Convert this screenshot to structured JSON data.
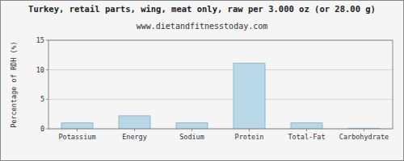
{
  "chart_data": {
    "type": "bar",
    "title": "Turkey, retail parts, wing, meat only, raw per 3.000 oz (or 28.00 g)",
    "subtitle": "www.dietandfitnesstoday.com",
    "ylabel": "Percentage of RDH (%)",
    "categories": [
      "Potassium",
      "Energy",
      "Sodium",
      "Protein",
      "Total-Fat",
      "Carbohydrate"
    ],
    "values": [
      1.0,
      2.2,
      1.0,
      11.1,
      1.0,
      0.1
    ],
    "color": "#b8d8e8",
    "ylim": [
      0,
      15
    ],
    "yticks": [
      0,
      5,
      10,
      15
    ],
    "grid": true
  }
}
